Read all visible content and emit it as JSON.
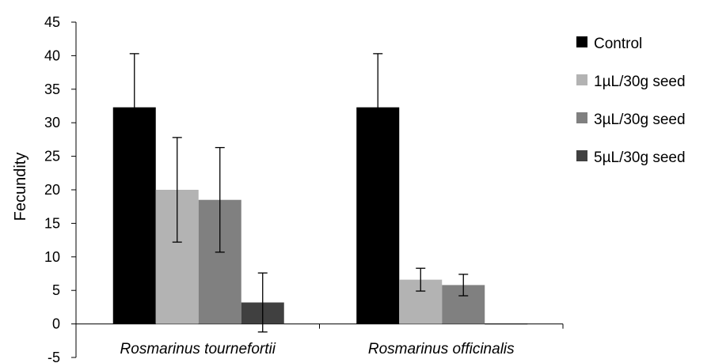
{
  "chart_data": {
    "type": "bar",
    "title": "",
    "xlabel": "",
    "ylabel": "Fecundity",
    "ylim": [
      -5,
      45
    ],
    "yticks": [
      "-5",
      "0",
      "5",
      "10",
      "15",
      "20",
      "25",
      "30",
      "35",
      "40",
      "45"
    ],
    "categories": [
      "Rosmarinus tournefortii",
      "Rosmarinus officinalis"
    ],
    "series": [
      {
        "name": "Control",
        "color": "#000000",
        "values": [
          32.3,
          32.3
        ],
        "errors": [
          8.0,
          8.0
        ]
      },
      {
        "name": "1µL/30g seed",
        "color": "#b3b3b3",
        "values": [
          20.0,
          6.6
        ],
        "errors": [
          7.8,
          1.7
        ]
      },
      {
        "name": "3µL/30g seed",
        "color": "#808080",
        "values": [
          18.5,
          5.8
        ],
        "errors": [
          7.8,
          1.6
        ]
      },
      {
        "name": "5µL/30g seed",
        "color": "#404040",
        "values": [
          3.2,
          0.0
        ],
        "errors": [
          4.4,
          0.0
        ]
      }
    ],
    "grid": false,
    "legend_position": "right"
  }
}
